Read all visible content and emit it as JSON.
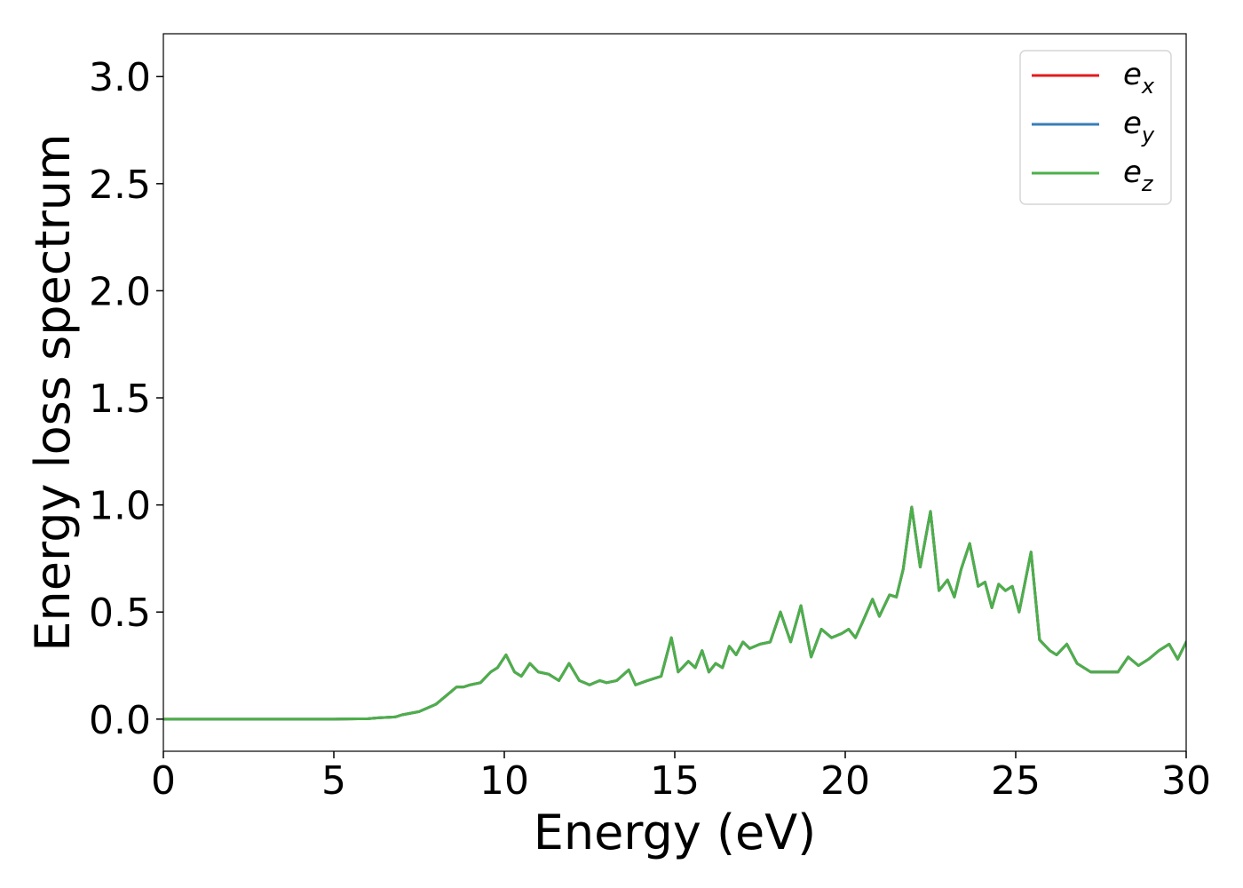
{
  "chart_data": {
    "type": "line",
    "title": "",
    "xlabel": "Energy (eV)",
    "ylabel": "Energy loss spectrum",
    "xlim": [
      0,
      30
    ],
    "ylim": [
      -0.15,
      3.2
    ],
    "xticks": [
      "0",
      "5",
      "10",
      "15",
      "20",
      "25",
      "30"
    ],
    "yticks": [
      "0.0",
      "0.5",
      "1.0",
      "1.5",
      "2.0",
      "2.5",
      "3.0"
    ],
    "xtick_values": [
      0,
      5,
      10,
      15,
      20,
      25,
      30
    ],
    "ytick_values": [
      0,
      0.5,
      1.0,
      1.5,
      2.0,
      2.5,
      3.0
    ],
    "grid": false,
    "legend_position": "top-right",
    "colors": {
      "e_x": "#e41a1c",
      "e_y": "#377eb8",
      "e_z": "#4daf4a"
    },
    "legend": [
      {
        "base": "e",
        "sub": "x",
        "color": "#e41a1c"
      },
      {
        "base": "e",
        "sub": "y",
        "color": "#377eb8"
      },
      {
        "base": "e",
        "sub": "z",
        "color": "#4daf4a"
      }
    ],
    "x": [
      0,
      1,
      2,
      3,
      4,
      5,
      6,
      6.3,
      6.8,
      7.0,
      7.5,
      8.0,
      8.3,
      8.6,
      8.8,
      9.0,
      9.3,
      9.6,
      9.8,
      10.05,
      10.3,
      10.5,
      10.75,
      11.0,
      11.3,
      11.6,
      11.9,
      12.2,
      12.5,
      12.8,
      13.0,
      13.3,
      13.65,
      13.85,
      14.2,
      14.6,
      14.9,
      15.1,
      15.4,
      15.6,
      15.8,
      16.0,
      16.2,
      16.4,
      16.6,
      16.8,
      17.0,
      17.2,
      17.5,
      17.8,
      18.1,
      18.4,
      18.7,
      19.0,
      19.3,
      19.6,
      19.9,
      20.1,
      20.3,
      20.5,
      20.8,
      21.0,
      21.3,
      21.5,
      21.7,
      21.95,
      22.2,
      22.5,
      22.75,
      23.0,
      23.2,
      23.4,
      23.65,
      23.9,
      24.1,
      24.3,
      24.5,
      24.7,
      24.9,
      25.1,
      25.45,
      25.7,
      26.0,
      26.2,
      26.5,
      26.8,
      27.2,
      27.6,
      28.0,
      28.3,
      28.6,
      28.9,
      29.2,
      29.5,
      29.75,
      30.0
    ],
    "series": [
      {
        "name": "e_x",
        "values": [
          0,
          0,
          0,
          0,
          0,
          0,
          0.002,
          0.006,
          0.01,
          0.02,
          0.035,
          0.07,
          0.11,
          0.15,
          0.15,
          0.16,
          0.17,
          0.22,
          0.24,
          0.3,
          0.22,
          0.2,
          0.26,
          0.22,
          0.21,
          0.18,
          0.26,
          0.18,
          0.16,
          0.18,
          0.17,
          0.18,
          0.23,
          0.16,
          0.18,
          0.2,
          0.38,
          0.22,
          0.27,
          0.24,
          0.32,
          0.22,
          0.26,
          0.24,
          0.34,
          0.3,
          0.36,
          0.33,
          0.35,
          0.36,
          0.5,
          0.36,
          0.53,
          0.29,
          0.42,
          0.38,
          0.4,
          0.42,
          0.38,
          0.45,
          0.56,
          0.48,
          0.58,
          0.57,
          0.7,
          0.99,
          0.71,
          0.97,
          0.6,
          0.65,
          0.57,
          0.7,
          0.82,
          0.62,
          0.64,
          0.52,
          0.63,
          0.6,
          0.62,
          0.5,
          0.78,
          0.37,
          0.32,
          0.3,
          0.35,
          0.26,
          0.22,
          0.22,
          0.22,
          0.29,
          0.25,
          0.28,
          0.32,
          0.35,
          0.28,
          0.36
        ]
      },
      {
        "name": "e_y",
        "values": [
          0,
          0,
          0,
          0,
          0,
          0,
          0.002,
          0.006,
          0.01,
          0.02,
          0.035,
          0.07,
          0.11,
          0.15,
          0.15,
          0.16,
          0.17,
          0.22,
          0.24,
          0.3,
          0.22,
          0.2,
          0.26,
          0.22,
          0.21,
          0.18,
          0.26,
          0.18,
          0.16,
          0.18,
          0.17,
          0.18,
          0.23,
          0.16,
          0.18,
          0.2,
          0.38,
          0.22,
          0.27,
          0.24,
          0.32,
          0.22,
          0.26,
          0.24,
          0.34,
          0.3,
          0.36,
          0.33,
          0.35,
          0.36,
          0.5,
          0.36,
          0.53,
          0.29,
          0.42,
          0.38,
          0.4,
          0.42,
          0.38,
          0.45,
          0.56,
          0.48,
          0.58,
          0.57,
          0.7,
          0.99,
          0.71,
          0.97,
          0.6,
          0.65,
          0.57,
          0.7,
          0.82,
          0.62,
          0.64,
          0.52,
          0.63,
          0.6,
          0.62,
          0.5,
          0.78,
          0.37,
          0.32,
          0.3,
          0.35,
          0.26,
          0.22,
          0.22,
          0.22,
          0.29,
          0.25,
          0.28,
          0.32,
          0.35,
          0.28,
          0.36
        ]
      },
      {
        "name": "e_z",
        "values": [
          0,
          0,
          0,
          0,
          0,
          0,
          0.002,
          0.006,
          0.01,
          0.02,
          0.035,
          0.07,
          0.11,
          0.15,
          0.15,
          0.16,
          0.17,
          0.22,
          0.24,
          0.3,
          0.22,
          0.2,
          0.26,
          0.22,
          0.21,
          0.18,
          0.26,
          0.18,
          0.16,
          0.18,
          0.17,
          0.18,
          0.23,
          0.16,
          0.18,
          0.2,
          0.38,
          0.22,
          0.27,
          0.24,
          0.32,
          0.22,
          0.26,
          0.24,
          0.34,
          0.3,
          0.36,
          0.33,
          0.35,
          0.36,
          0.5,
          0.36,
          0.53,
          0.29,
          0.42,
          0.38,
          0.4,
          0.42,
          0.38,
          0.45,
          0.56,
          0.48,
          0.58,
          0.57,
          0.7,
          0.99,
          0.71,
          0.97,
          0.6,
          0.65,
          0.57,
          0.7,
          0.82,
          0.62,
          0.64,
          0.52,
          0.63,
          0.6,
          0.62,
          0.5,
          0.78,
          0.37,
          0.32,
          0.3,
          0.35,
          0.26,
          0.22,
          0.22,
          0.22,
          0.29,
          0.25,
          0.28,
          0.32,
          0.35,
          0.28,
          0.36
        ]
      }
    ]
  }
}
